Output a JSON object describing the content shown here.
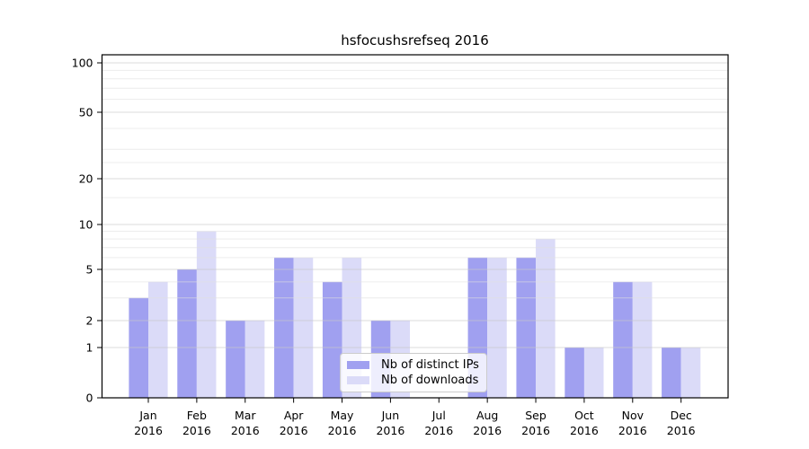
{
  "chart_data": {
    "type": "bar",
    "title": "hsfocushsrefseq 2016",
    "categories": [
      "Jan",
      "Feb",
      "Mar",
      "Apr",
      "May",
      "Jun",
      "Jul",
      "Aug",
      "Sep",
      "Oct",
      "Nov",
      "Dec"
    ],
    "year_label": "2016",
    "series": [
      {
        "name": "Nb of distinct IPs",
        "color": "#a0a0f0",
        "values": [
          3,
          5,
          2,
          6,
          4,
          2,
          0,
          6,
          6,
          1,
          4,
          1
        ]
      },
      {
        "name": "Nb of downloads",
        "color": "#dbdbf8",
        "values": [
          4,
          9,
          2,
          6,
          6,
          2,
          0,
          6,
          8,
          1,
          4,
          1
        ]
      }
    ],
    "yscale": "log",
    "ytick_labels": [
      "0",
      "1",
      "2",
      "5",
      "10",
      "20",
      "50",
      "100"
    ],
    "yticks": [
      0,
      1,
      2,
      5,
      10,
      20,
      50,
      100
    ],
    "ylim": [
      0,
      100
    ],
    "grid": true,
    "legend_position": "lower center"
  }
}
